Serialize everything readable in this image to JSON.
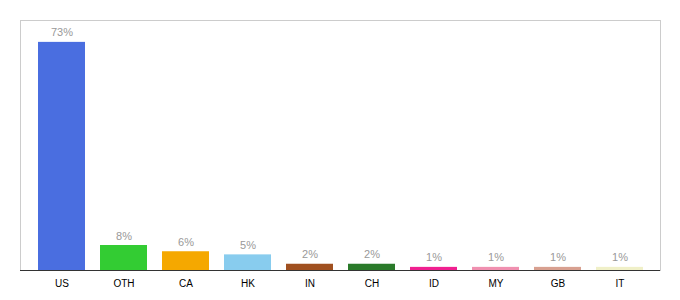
{
  "chart_data": {
    "type": "bar",
    "categories": [
      "US",
      "OTH",
      "CA",
      "HK",
      "IN",
      "CH",
      "ID",
      "MY",
      "GB",
      "IT"
    ],
    "values": [
      73,
      8,
      6,
      5,
      2,
      2,
      1,
      1,
      1,
      1
    ],
    "value_labels": [
      "73%",
      "8%",
      "6%",
      "5%",
      "2%",
      "2%",
      "1%",
      "1%",
      "1%",
      "1%"
    ],
    "colors": [
      "#4a6ee0",
      "#33cc33",
      "#f5a800",
      "#88ccee",
      "#a05020",
      "#2a7a2a",
      "#f02090",
      "#f090b0",
      "#d8a090",
      "#f0f0c8"
    ],
    "ylim": [
      0,
      80
    ],
    "grid": false,
    "data_labels": true,
    "tick_labels": "x"
  }
}
